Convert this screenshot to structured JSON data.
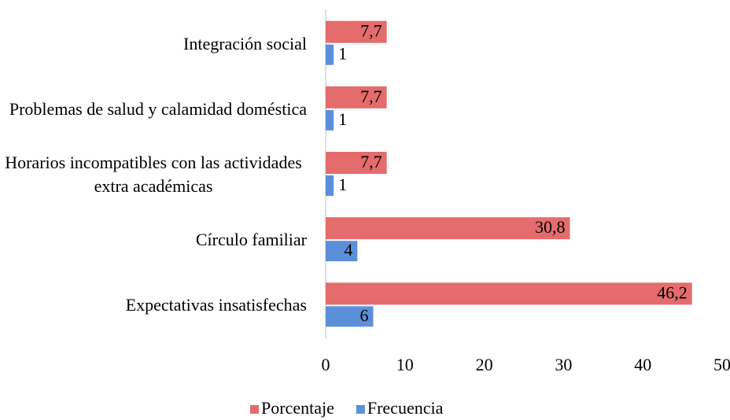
{
  "chart_data": {
    "type": "hbar",
    "categories": [
      "Integración social",
      "Problemas de salud y calamidad doméstica",
      "Horarios incompatibles con las actividades extra académicas",
      "Círculo familiar",
      "Expectativas insatisfechas"
    ],
    "series": [
      {
        "name": "Porcentaje",
        "color": "#e46c6c",
        "values": [
          7.7,
          7.7,
          7.7,
          30.8,
          46.2
        ],
        "value_labels": [
          "7,7",
          "7,7",
          "7,7",
          "30,8",
          "46,2"
        ]
      },
      {
        "name": "Frecuencia",
        "color": "#5b8fd9",
        "values": [
          1,
          1,
          1,
          4,
          6
        ]
      }
    ],
    "xlim": [
      0,
      50
    ],
    "xticks": [
      0,
      10,
      20,
      30,
      40,
      50
    ],
    "grid": false,
    "legend": "bottom"
  }
}
